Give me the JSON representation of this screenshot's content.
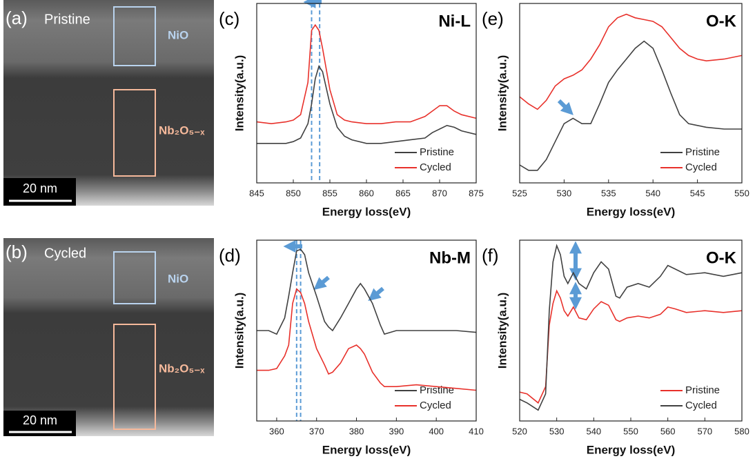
{
  "images": [
    {
      "label": "(a)",
      "caption": "Pristine",
      "regions": [
        "NiO",
        "Nb₂O₅₋ₓ"
      ],
      "scale_bar": "20 nm"
    },
    {
      "label": "(b)",
      "caption": "Cycled",
      "regions": [
        "NiO",
        "Nb₂O₅₋ₓ"
      ],
      "scale_bar": "20 nm"
    }
  ],
  "chart_data": [
    {
      "type": "line",
      "panel": "(c)",
      "title": "Ni-L",
      "xlabel": "Energy loss(eV)",
      "ylabel": "Intensity(a.u.)",
      "xlim": [
        845,
        875
      ],
      "xticks": [
        845,
        850,
        855,
        860,
        865,
        870,
        875
      ],
      "ylim": [
        0,
        100
      ],
      "vlines": [
        852.5,
        853.6
      ],
      "legend": "lower right",
      "x": [
        845,
        847,
        849,
        850,
        851,
        852,
        852.5,
        853,
        853.5,
        854,
        855,
        856,
        857,
        858,
        860,
        862,
        864,
        866,
        868,
        869,
        870,
        871,
        872,
        873,
        875
      ],
      "series": [
        {
          "name": "Pristine",
          "color": "#404040",
          "values": [
            22,
            22,
            22,
            23,
            25,
            33,
            44,
            58,
            65,
            62,
            44,
            31,
            26,
            24,
            22,
            22,
            23,
            24,
            25,
            28,
            30,
            32,
            31,
            29,
            27
          ]
        },
        {
          "name": "Cycled",
          "color": "#e8302a",
          "values": [
            34,
            33,
            34,
            35,
            38,
            56,
            85,
            88,
            85,
            75,
            52,
            38,
            35,
            34,
            33,
            33,
            34,
            34,
            37,
            40,
            43,
            43,
            40,
            38,
            36
          ]
        }
      ]
    },
    {
      "type": "line",
      "panel": "(e)",
      "title": "O-K",
      "xlabel": "Energy loss(eV)",
      "ylabel": "Intensity(a.u.)",
      "xlim": [
        525,
        550
      ],
      "xticks": [
        525,
        530,
        535,
        540,
        545,
        550
      ],
      "ylim": [
        0,
        100
      ],
      "legend": "lower right",
      "x": [
        525,
        526,
        527,
        528,
        529,
        530,
        531,
        532,
        533,
        534,
        535,
        536,
        537,
        538,
        539,
        540,
        541,
        542,
        543,
        544,
        545,
        546,
        548,
        550
      ],
      "series": [
        {
          "name": "Pristine",
          "color": "#404040",
          "values": [
            10,
            7,
            7,
            13,
            23,
            33,
            36,
            33,
            33,
            44,
            56,
            63,
            69,
            75,
            79,
            75,
            63,
            50,
            38,
            33,
            32,
            31,
            30,
            30
          ]
        },
        {
          "name": "Cycled",
          "color": "#e8302a",
          "values": [
            48,
            44,
            41,
            46,
            54,
            58,
            60,
            63,
            69,
            77,
            87,
            92,
            94,
            92,
            91,
            90,
            87,
            81,
            75,
            71,
            69,
            68,
            69,
            71
          ]
        }
      ]
    },
    {
      "type": "line",
      "panel": "(d)",
      "title": "Nb-M",
      "xlabel": "Energy loss(eV)",
      "ylabel": "Intensity(a.u.)",
      "xlim": [
        355,
        410
      ],
      "xticks": [
        360,
        370,
        380,
        390,
        400,
        410
      ],
      "ylim": [
        0,
        100
      ],
      "vlines": [
        365,
        366
      ],
      "legend": "lower right",
      "x": [
        355,
        358,
        360,
        362,
        363,
        364,
        365,
        366,
        367,
        368,
        370,
        372,
        373,
        374,
        376,
        378,
        380,
        381,
        382,
        384,
        386,
        387,
        390,
        395,
        400,
        405,
        410
      ],
      "series": [
        {
          "name": "Pristine",
          "color": "#404040",
          "values": [
            50,
            50,
            48,
            57,
            69,
            82,
            94,
            95,
            92,
            82,
            69,
            55,
            52,
            50,
            57,
            65,
            73,
            76,
            73,
            65,
            53,
            48,
            50,
            50,
            50,
            50,
            49
          ]
        },
        {
          "name": "Cycled",
          "color": "#e8302a",
          "values": [
            28,
            28,
            29,
            36,
            42,
            65,
            73,
            71,
            65,
            55,
            40,
            31,
            26,
            27,
            32,
            40,
            42,
            40,
            37,
            27,
            21,
            19,
            19,
            20,
            19,
            18,
            17
          ]
        }
      ]
    },
    {
      "type": "line",
      "panel": "(f)",
      "title": "O-K",
      "xlabel": "Energy loss(eV)",
      "ylabel": "Intensity(a.u.)",
      "xlim": [
        520,
        580
      ],
      "xticks": [
        520,
        530,
        540,
        550,
        560,
        570,
        580
      ],
      "ylim": [
        0,
        100
      ],
      "legend": "lower right",
      "x": [
        520,
        522,
        525,
        527,
        528,
        529,
        530,
        531,
        532,
        533,
        534.5,
        536,
        538,
        540,
        542,
        544,
        546,
        547,
        549,
        552,
        555,
        558,
        560,
        562,
        565,
        570,
        575,
        580
      ],
      "series": [
        {
          "name": "Pristine",
          "color": "#e8302a",
          "values": [
            16,
            15,
            10,
            19,
            53,
            65,
            72,
            68,
            61,
            58,
            63,
            57,
            56,
            62,
            66,
            64,
            56,
            55,
            57,
            58,
            57,
            59,
            63,
            62,
            60,
            61,
            60,
            61
          ]
        },
        {
          "name": "Cycled",
          "color": "#404040",
          "values": [
            12,
            10,
            6,
            15,
            61,
            88,
            97,
            92,
            80,
            76,
            82,
            76,
            73,
            82,
            88,
            84,
            69,
            68,
            74,
            76,
            74,
            80,
            86,
            84,
            81,
            82,
            80,
            82
          ]
        }
      ]
    }
  ]
}
